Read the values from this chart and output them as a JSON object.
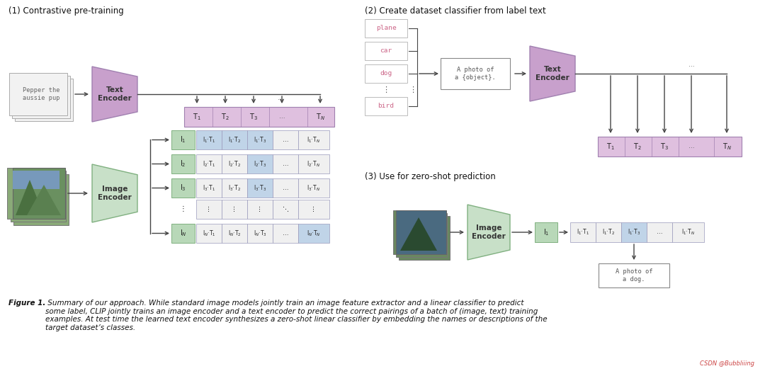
{
  "bg_color": "#ffffff",
  "fill_purple": "#c8a0cc",
  "fill_purple_light": "#dfc0df",
  "fill_green": "#b8d8b8",
  "fill_green_encoder": "#c8e0c8",
  "matrix_blue": "#c0d4e8",
  "matrix_white": "#f0f0f0",
  "border_gray": "#999999",
  "border_purple": "#a080b0",
  "border_green": "#80b080",
  "text_dark": "#222222",
  "text_mid": "#555555",
  "pink_text": "#cc6688",
  "mono_gray": "#666666",
  "section1_title": "(1) Contrastive pre-training",
  "section2_title": "(2) Create dataset classifier from label text",
  "section3_title": "(3) Use for zero-shot prediction",
  "caption_bold": "Figure 1.",
  "caption_rest": " Summary of our approach. While standard image models jointly train an image feature extractor and a linear classifier to predict\nsome label, CLIP jointly trains an image encoder and a text encoder to predict the correct pairings of a batch of (image, text) training\nexamples. At test time the learned text encoder synthesizes a zero-shot linear classifier by embedding the names or descriptions of the\ntarget dataset’s classes."
}
